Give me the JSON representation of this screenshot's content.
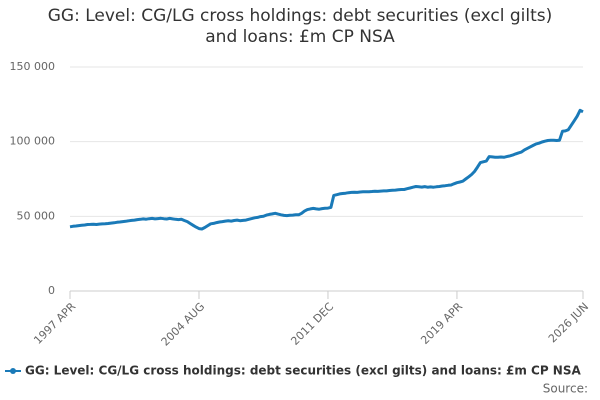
{
  "chart_data": {
    "type": "line",
    "title": "GG: Level: CG/LG cross holdings: debt securities (excl gilts) and loans: £m CP NSA",
    "source": "Source:",
    "categories": [
      "1997 APR",
      null,
      null,
      null,
      null,
      null,
      null,
      null,
      null,
      null,
      null,
      null,
      null,
      null,
      null,
      null,
      null,
      null,
      null,
      null,
      null,
      null,
      null,
      null,
      null,
      null,
      null,
      null,
      null,
      null,
      null,
      null,
      null,
      null,
      null,
      null,
      null,
      null,
      null,
      null,
      null,
      null,
      null,
      null,
      "2004 AUG",
      null,
      null,
      null,
      null,
      null,
      null,
      null,
      null,
      null,
      null,
      null,
      null,
      null,
      null,
      null,
      null,
      null,
      null,
      null,
      null,
      null,
      null,
      null,
      null,
      null,
      null,
      null,
      null,
      null,
      null,
      null,
      null,
      null,
      null,
      null,
      null,
      null,
      null,
      null,
      null,
      null,
      null,
      null,
      "2011 DEC",
      null,
      null,
      null,
      null,
      null,
      null,
      null,
      null,
      null,
      null,
      null,
      null,
      null,
      null,
      null,
      null,
      null,
      null,
      null,
      null,
      null,
      null,
      null,
      null,
      null,
      null,
      null,
      null,
      null,
      null,
      null,
      null,
      null,
      null,
      null,
      null,
      null,
      null,
      null,
      null,
      null,
      null,
      null,
      "2019 APR",
      null,
      null,
      null,
      null,
      null,
      null,
      null,
      null,
      null,
      null,
      null,
      null,
      null,
      null,
      null,
      null,
      null,
      null,
      null,
      null,
      null,
      null,
      null,
      null,
      null,
      null,
      null,
      null,
      null,
      null,
      null,
      null,
      null,
      null,
      null,
      null,
      null,
      null,
      null,
      null,
      null,
      null,
      "2026 JUN"
    ],
    "series": [
      {
        "name": "GG: Level: CG/LG cross holdings: debt securities (excl gilts) and loans: £m CP NSA",
        "color": "#1a7ab8",
        "values": [
          43000,
          43300,
          43500,
          43800,
          44000,
          44200,
          44500,
          44600,
          44700,
          44500,
          44800,
          44900,
          45000,
          45200,
          45500,
          45700,
          46000,
          46200,
          46500,
          46700,
          47000,
          47300,
          47500,
          47800,
          48000,
          48300,
          48100,
          48400,
          48600,
          48300,
          48500,
          48700,
          48400,
          48200,
          48600,
          48300,
          48000,
          47800,
          48000,
          47200,
          46500,
          45200,
          44000,
          42800,
          41800,
          41500,
          42500,
          43800,
          45000,
          45300,
          45800,
          46200,
          46500,
          46800,
          47000,
          46800,
          47200,
          47500,
          47100,
          47300,
          47500,
          48000,
          48500,
          49000,
          49300,
          49800,
          50000,
          50800,
          51300,
          51600,
          52000,
          51500,
          51000,
          50600,
          50500,
          50700,
          50800,
          51000,
          51000,
          52000,
          53500,
          54500,
          55000,
          55300,
          55000,
          54800,
          55200,
          55400,
          55500,
          56000,
          64000,
          64500,
          65000,
          65300,
          65500,
          65800,
          66000,
          66100,
          66000,
          66300,
          66400,
          66500,
          66500,
          66600,
          66800,
          66700,
          66900,
          67000,
          67000,
          67300,
          67500,
          67600,
          67800,
          68000,
          68000,
          68500,
          69000,
          69500,
          70000,
          69800,
          69600,
          69900,
          69500,
          69700,
          69500,
          69800,
          70000,
          70300,
          70500,
          70800,
          71000,
          71800,
          72500,
          73000,
          73500,
          75000,
          76500,
          78000,
          80000,
          83000,
          86000,
          86500,
          87000,
          90000,
          89800,
          89600,
          89500,
          89700,
          89500,
          90000,
          90500,
          91000,
          91800,
          92500,
          93000,
          94500,
          95500,
          96500,
          97500,
          98500,
          99000,
          99800,
          100300,
          100800,
          101000,
          101000,
          100800,
          101000,
          107000,
          107200,
          108000,
          111000,
          114000,
          117000,
          121000,
          120000
        ]
      }
    ],
    "ylim": [
      0,
      150000
    ],
    "yticks": [
      0,
      {
        "value": 50000,
        "label": "50 000"
      },
      {
        "value": 100000,
        "label": "100 000"
      },
      {
        "value": 150000,
        "label": "150 000"
      }
    ],
    "grid": true,
    "legend": "bottom"
  }
}
